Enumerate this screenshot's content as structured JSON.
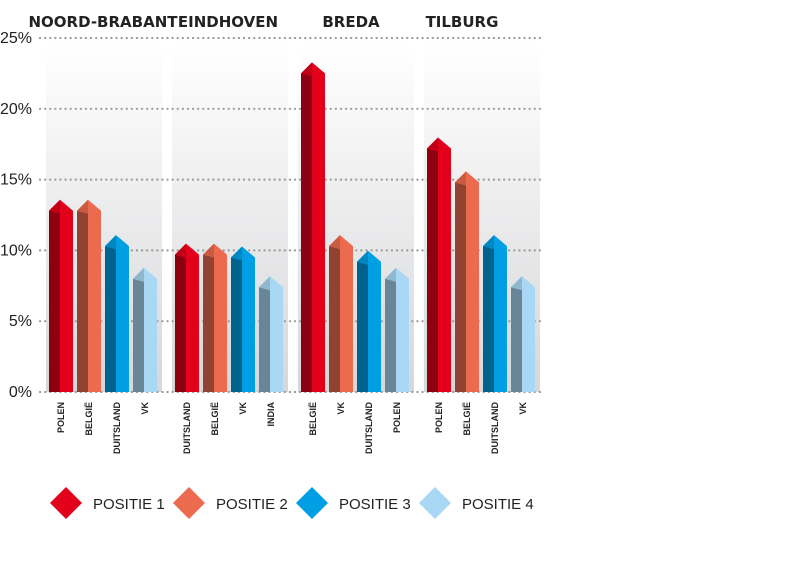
{
  "chart_data": {
    "type": "bar",
    "ylim": [
      0,
      25
    ],
    "yticks": [
      "0%",
      "5%",
      "10%",
      "15%",
      "20%",
      "25%"
    ],
    "grid": "dotted-horizontal",
    "legend_position": "bottom",
    "legend": [
      {
        "label": "POSITIE 1",
        "color": "#e3001b"
      },
      {
        "label": "POSITIE 2",
        "color": "#ec6b4f"
      },
      {
        "label": "POSITIE 3",
        "color": "#009fe3"
      },
      {
        "label": "POSITIE 4",
        "color": "#a8d8f4"
      }
    ],
    "groups": [
      {
        "name": "NOORD-BRABANT",
        "highlight": "#e3001b",
        "categories": [
          "POLEN",
          "BELGIË",
          "DUITSLAND",
          "VK"
        ],
        "values": [
          12.8,
          12.8,
          10.3,
          8.0
        ]
      },
      {
        "name": "EINDHOVEN",
        "highlight": "",
        "categories": [
          "DUITSLAND",
          "BELGIË",
          "VK",
          "INDIA"
        ],
        "values": [
          9.7,
          9.7,
          9.5,
          7.4
        ]
      },
      {
        "name": "BREDA",
        "highlight": "",
        "categories": [
          "BELGIË",
          "VK",
          "DUITSLAND",
          "POLEN"
        ],
        "values": [
          22.5,
          10.3,
          9.2,
          8.0
        ]
      },
      {
        "name": "TILBURG",
        "highlight": "",
        "categories": [
          "POLEN",
          "BELGIË",
          "DUITSLAND",
          "VK"
        ],
        "values": [
          17.2,
          14.8,
          10.3,
          7.4
        ]
      }
    ]
  }
}
